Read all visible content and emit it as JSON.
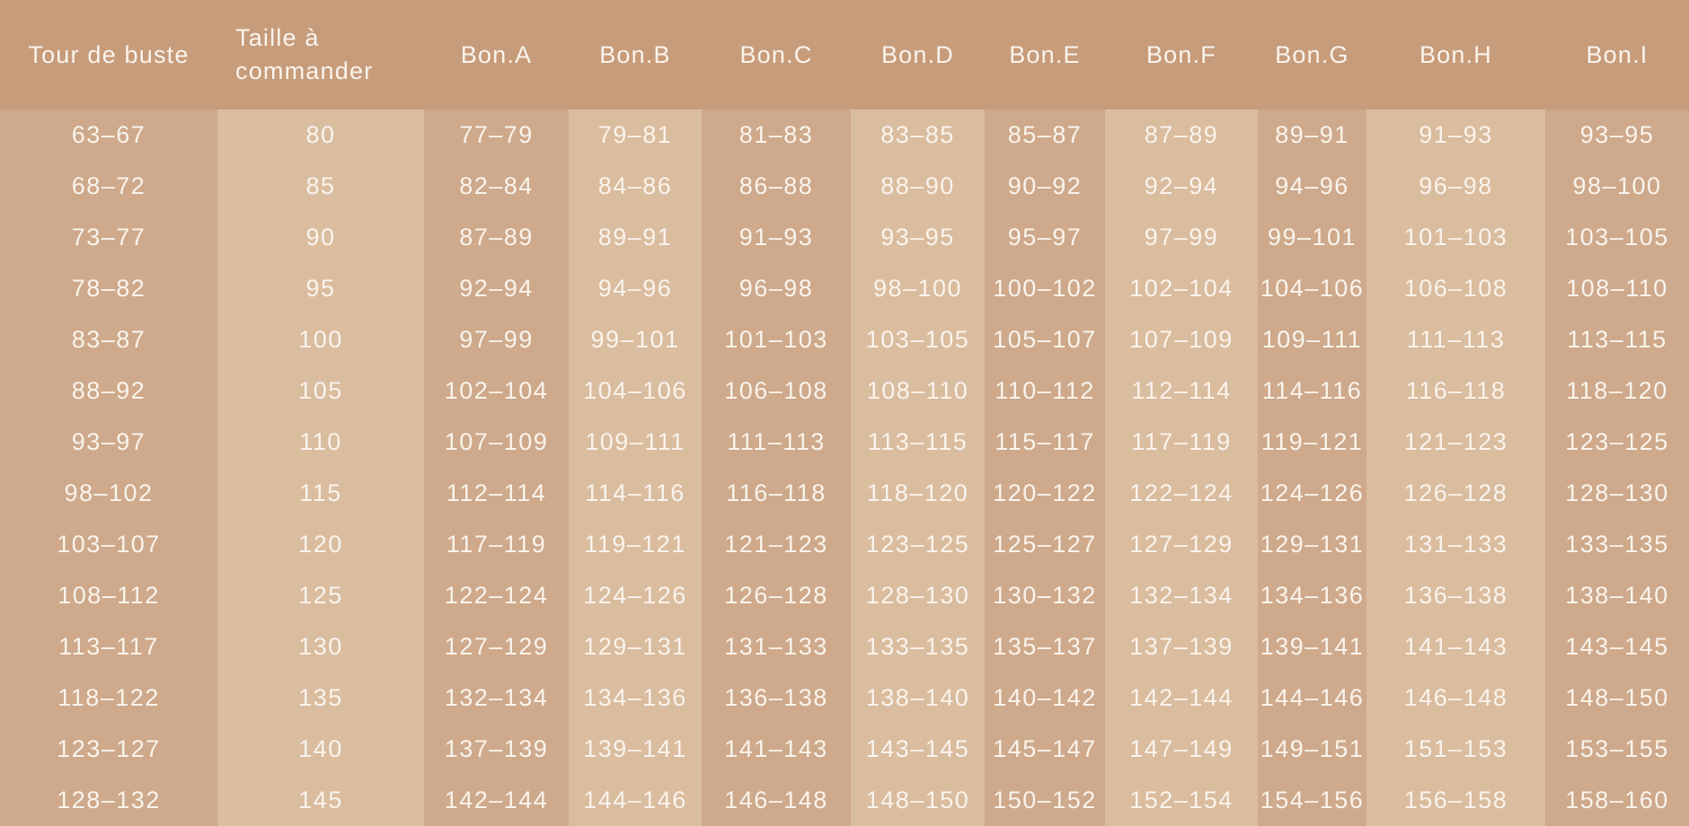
{
  "colors": {
    "header_bg": "#c79c7b",
    "column_dark": "#cea98c",
    "column_light": "#dabc9f",
    "text": "#faf4ec"
  },
  "chart_data": {
    "type": "table",
    "columns": [
      "Tour de buste",
      "Taille à commander",
      "Bon.A",
      "Bon.B",
      "Bon.C",
      "Bon.D",
      "Bon.E",
      "Bon.F",
      "Bon.G",
      "Bon.H",
      "Bon.I"
    ],
    "rows": [
      [
        "63–67",
        "80",
        "77–79",
        "79–81",
        "81–83",
        "83–85",
        "85–87",
        "87–89",
        "89–91",
        "91–93",
        "93–95"
      ],
      [
        "68–72",
        "85",
        "82–84",
        "84–86",
        "86–88",
        "88–90",
        "90–92",
        "92–94",
        "94–96",
        "96–98",
        "98–100"
      ],
      [
        "73–77",
        "90",
        "87–89",
        "89–91",
        "91–93",
        "93–95",
        "95–97",
        "97–99",
        "99–101",
        "101–103",
        "103–105"
      ],
      [
        "78–82",
        "95",
        "92–94",
        "94–96",
        "96–98",
        "98–100",
        "100–102",
        "102–104",
        "104–106",
        "106–108",
        "108–110"
      ],
      [
        "83–87",
        "100",
        "97–99",
        "99–101",
        "101–103",
        "103–105",
        "105–107",
        "107–109",
        "109–111",
        "111–113",
        "113–115"
      ],
      [
        "88–92",
        "105",
        "102–104",
        "104–106",
        "106–108",
        "108–110",
        "110–112",
        "112–114",
        "114–116",
        "116–118",
        "118–120"
      ],
      [
        "93–97",
        "110",
        "107–109",
        "109–111",
        "111–113",
        "113–115",
        "115–117",
        "117–119",
        "119–121",
        "121–123",
        "123–125"
      ],
      [
        "98–102",
        "115",
        "112–114",
        "114–116",
        "116–118",
        "118–120",
        "120–122",
        "122–124",
        "124–126",
        "126–128",
        "128–130"
      ],
      [
        "103–107",
        "120",
        "117–119",
        "119–121",
        "121–123",
        "123–125",
        "125–127",
        "127–129",
        "129–131",
        "131–133",
        "133–135"
      ],
      [
        "108–112",
        "125",
        "122–124",
        "124–126",
        "126–128",
        "128–130",
        "130–132",
        "132–134",
        "134–136",
        "136–138",
        "138–140"
      ],
      [
        "113–117",
        "130",
        "127–129",
        "129–131",
        "131–133",
        "133–135",
        "135–137",
        "137–139",
        "139–141",
        "141–143",
        "143–145"
      ],
      [
        "118–122",
        "135",
        "132–134",
        "134–136",
        "136–138",
        "138–140",
        "140–142",
        "142–144",
        "144–146",
        "146–148",
        "148–150"
      ],
      [
        "123–127",
        "140",
        "137–139",
        "139–141",
        "141–143",
        "143–145",
        "145–147",
        "147–149",
        "149–151",
        "151–153",
        "153–155"
      ],
      [
        "128–132",
        "145",
        "142–144",
        "144–146",
        "146–148",
        "148–150",
        "150–152",
        "152–154",
        "154–156",
        "156–158",
        "158–160"
      ]
    ]
  }
}
